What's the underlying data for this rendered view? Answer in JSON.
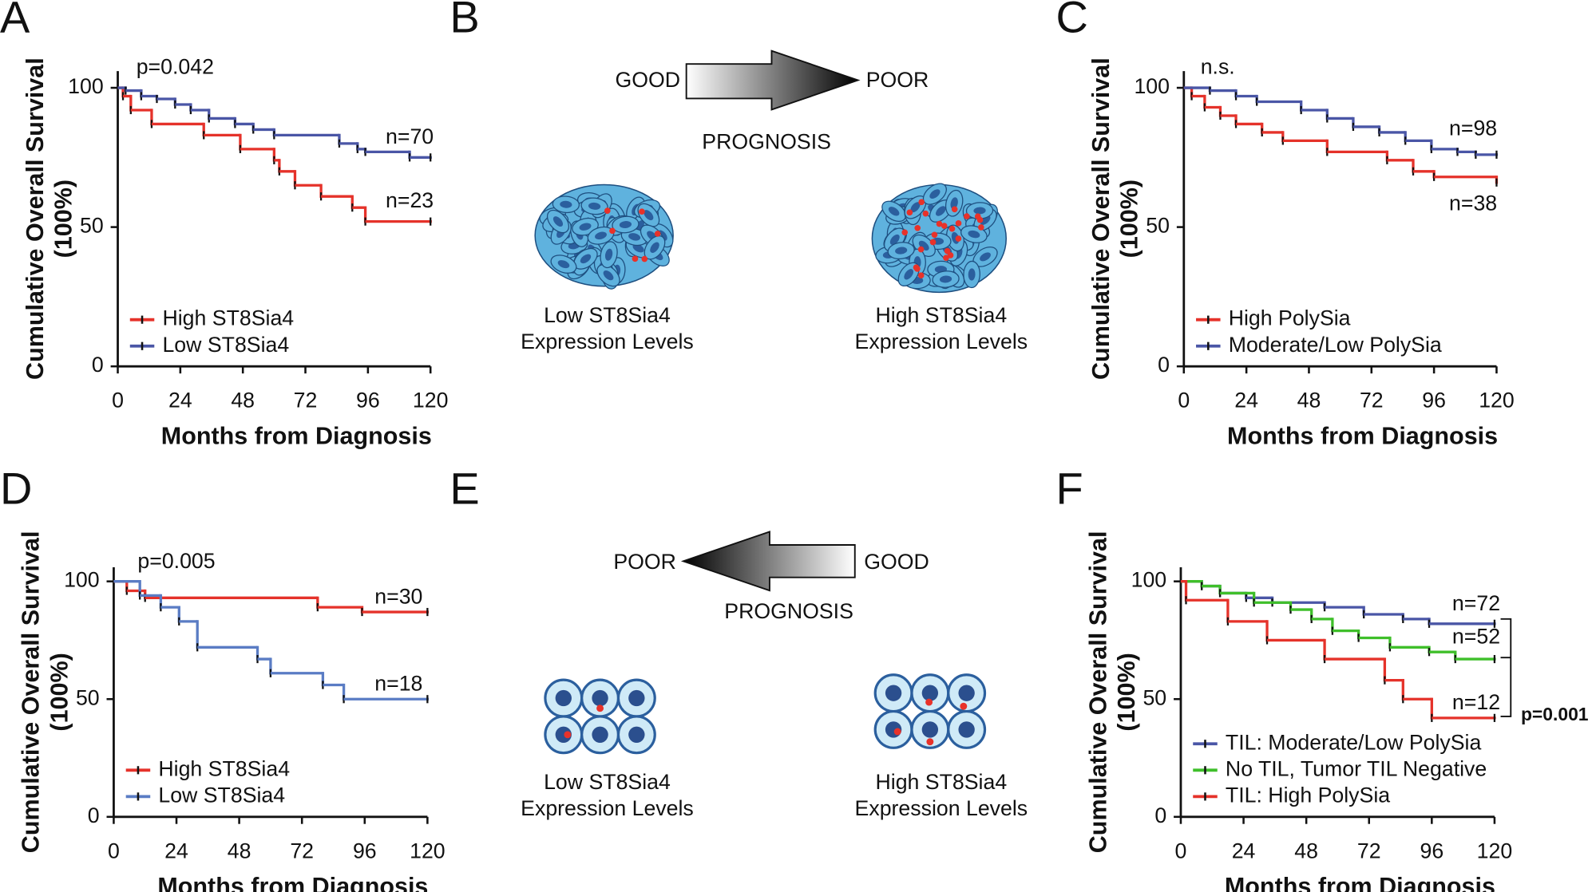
{
  "chart_data": [
    {
      "type": "line",
      "panel": "A",
      "y_label": [
        "Cumulative Overall Survival",
        "(100%)"
      ],
      "x_label": "Months from Diagnosis",
      "xlim": [
        0,
        120
      ],
      "xticks": [
        0,
        24,
        48,
        72,
        96,
        120
      ],
      "ylim": [
        0,
        106
      ],
      "yticks": [
        0,
        50,
        100
      ],
      "step": true,
      "legend": "lower left",
      "series": [
        {
          "name": "High ST8Sia4",
          "color": "#e5322a",
          "x": [
            0,
            2,
            5,
            13,
            33,
            47,
            60,
            62,
            68,
            78,
            90,
            95,
            120
          ],
          "values": [
            100,
            97,
            92,
            87,
            83,
            78,
            74,
            70,
            65,
            61,
            57,
            52,
            52
          ]
        },
        {
          "name": "Low ST8Sia4",
          "color": "#4a56a6",
          "x": [
            0,
            3,
            9,
            15,
            22,
            28,
            35,
            45,
            52,
            60,
            85,
            92,
            95,
            112,
            120
          ],
          "values": [
            100,
            99,
            97,
            96,
            94,
            92,
            89,
            87,
            85,
            83,
            80,
            78,
            77,
            75,
            75
          ]
        }
      ],
      "annotations": [
        {
          "text": "p=0.042",
          "x": 22,
          "y": 107
        },
        {
          "text": "n=70",
          "x": 112,
          "y": 82
        },
        {
          "text": "n=23",
          "x": 112,
          "y": 59
        }
      ]
    },
    {
      "type": "line",
      "panel": "C",
      "y_label": [
        "Cumulative Overall Survival",
        "(100%)"
      ],
      "x_label": "Months from Diagnosis",
      "xlim": [
        0,
        120
      ],
      "xticks": [
        0,
        24,
        48,
        72,
        96,
        120
      ],
      "ylim": [
        0,
        106
      ],
      "yticks": [
        0,
        50,
        100
      ],
      "step": true,
      "legend": "lower left",
      "series": [
        {
          "name": "High PolySia",
          "color": "#e5322a",
          "x": [
            0,
            3,
            8,
            14,
            20,
            30,
            38,
            55,
            78,
            88,
            96,
            120
          ],
          "values": [
            100,
            97,
            93,
            90,
            87,
            84,
            81,
            77,
            74,
            70,
            68,
            66
          ]
        },
        {
          "name": "Moderate/Low PolySia",
          "color": "#4a56a6",
          "x": [
            0,
            10,
            20,
            28,
            45,
            55,
            65,
            75,
            85,
            95,
            105,
            112,
            120
          ],
          "values": [
            100,
            99,
            97,
            95,
            92,
            89,
            86,
            84,
            81,
            78,
            77,
            76,
            76
          ]
        }
      ],
      "annotations": [
        {
          "text": "n.s.",
          "x": 13,
          "y": 107
        },
        {
          "text": "n=98",
          "x": 111,
          "y": 85
        },
        {
          "text": "n=38",
          "x": 111,
          "y": 58
        }
      ]
    },
    {
      "type": "line",
      "panel": "D",
      "y_label": [
        "Cumulative Overall Survival",
        "(100%)"
      ],
      "x_label": "Months from Diagnosis",
      "xlim": [
        0,
        120
      ],
      "xticks": [
        0,
        24,
        48,
        72,
        96,
        120
      ],
      "ylim": [
        0,
        106
      ],
      "yticks": [
        0,
        50,
        100
      ],
      "step": true,
      "legend": "lower left",
      "series": [
        {
          "name": "High ST8Sia4",
          "color": "#e5322a",
          "x": [
            0,
            5,
            12,
            78,
            95,
            120
          ],
          "values": [
            100,
            96,
            93,
            89,
            87,
            87
          ]
        },
        {
          "name": "Low ST8Sia4",
          "color": "#5a7cc4",
          "x": [
            0,
            10,
            18,
            25,
            32,
            55,
            60,
            80,
            88,
            120
          ],
          "values": [
            100,
            94,
            89,
            83,
            72,
            67,
            61,
            56,
            50,
            50
          ]
        }
      ],
      "annotations": [
        {
          "text": "p=0.005",
          "x": 24,
          "y": 108
        },
        {
          "text": "n=30",
          "x": 109,
          "y": 93
        },
        {
          "text": "n=18",
          "x": 109,
          "y": 56
        }
      ]
    },
    {
      "type": "line",
      "panel": "F",
      "y_label": [
        "Cumulative Overall Survival",
        "(100%)"
      ],
      "x_label": "Months from Diagnosis",
      "xlim": [
        0,
        120
      ],
      "xticks": [
        0,
        24,
        48,
        72,
        96,
        120
      ],
      "ylim": [
        0,
        106
      ],
      "yticks": [
        0,
        50,
        100
      ],
      "step": true,
      "legend": "lower left",
      "series": [
        {
          "name": "TIL: Moderate/Low PolySia",
          "color": "#4a56a6",
          "x": [
            0,
            8,
            15,
            25,
            35,
            55,
            70,
            85,
            95,
            120
          ],
          "values": [
            100,
            98,
            95,
            93,
            91,
            89,
            86,
            84,
            82,
            82
          ]
        },
        {
          "name": "No TIL, Tumor TIL Negative",
          "color": "#3fbf2a",
          "x": [
            0,
            8,
            15,
            28,
            42,
            50,
            58,
            68,
            80,
            95,
            105,
            120
          ],
          "values": [
            100,
            98,
            95,
            91,
            88,
            84,
            79,
            76,
            72,
            70,
            67,
            67
          ]
        },
        {
          "name": "TIL: High PolySia",
          "color": "#e5322a",
          "x": [
            0,
            2,
            18,
            33,
            55,
            78,
            85,
            96,
            120
          ],
          "values": [
            100,
            92,
            83,
            75,
            67,
            58,
            50,
            42,
            42
          ]
        }
      ],
      "annotations": [
        {
          "text": "n=72",
          "x": 113,
          "y": 90
        },
        {
          "text": "n=52",
          "x": 113,
          "y": 76
        },
        {
          "text": "n=12",
          "x": 113,
          "y": 48
        },
        {
          "text": "p=0.001",
          "x": 143,
          "y": 43,
          "bold": true
        }
      ]
    }
  ],
  "diagrams": [
    {
      "panel": "B",
      "left": "GOOD",
      "right": "POOR",
      "caption": "PROGNOSIS",
      "low": [
        "Low ST8Sia4",
        "Expression Levels"
      ],
      "high": [
        "High ST8Sia4",
        "Expression Levels"
      ]
    },
    {
      "panel": "E",
      "left": "POOR",
      "right": "GOOD",
      "caption": "PROGNOSIS",
      "low": [
        "Low ST8Sia4",
        "Expression Levels"
      ],
      "high": [
        "High ST8Sia4",
        "Expression Levels"
      ]
    }
  ]
}
